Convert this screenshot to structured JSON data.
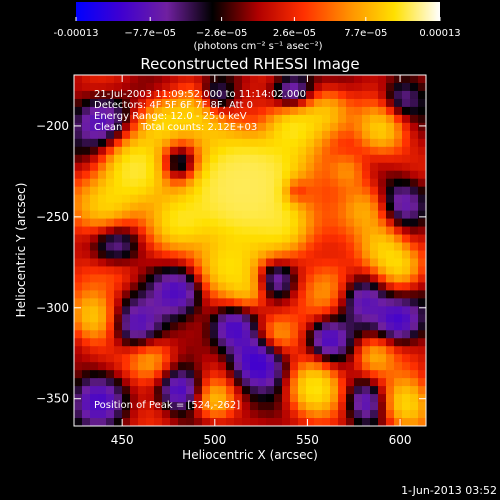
{
  "colorbar": {
    "tick_labels": [
      "-0.00013",
      "−7.7e−05",
      "−2.6e−05",
      "2.6e−05",
      "7.7e−05",
      "0.00013"
    ],
    "tick_values": [
      -0.00013,
      -7.7e-05,
      -2.6e-05,
      2.6e-05,
      7.7e-05,
      0.00013
    ],
    "range": [
      -0.00013,
      0.00013
    ],
    "unit_label": "(photons cm⁻² s⁻¹ asec⁻²)",
    "colormap": [
      "#0000ff",
      "#4000d0",
      "#7020a0",
      "#000000",
      "#b00000",
      "#ff3000",
      "#ff9000",
      "#ffe000",
      "#ffffff"
    ]
  },
  "chart_data": {
    "type": "heatmap",
    "title": "Reconstructed RHESSI Image",
    "xlabel": "Heliocentric X (arcsec)",
    "ylabel": "Heliocentric Y (arcsec)",
    "xlim": [
      424,
      614
    ],
    "ylim": [
      -365,
      -172
    ],
    "x_ticks": [
      450,
      500,
      550,
      600
    ],
    "y_ticks": [
      -200,
      -250,
      -300,
      -350
    ],
    "peak": [
      524,
      -262
    ],
    "annotations": {
      "time_range": "21-Jul-2003 11:09:52.000 to 11:14:02.000",
      "detectors": "Detectors: 4F 5F 6F 7F 8F, Att 0",
      "energy": "Energy Range: 12.0 - 25.0 keV",
      "algorithm": "Clean",
      "counts": "Total counts: 2.12E+03",
      "peak_label": "Position of Peak = [524,-262]"
    }
  },
  "footer": {
    "date": "1-Jun-2013 03:52"
  }
}
